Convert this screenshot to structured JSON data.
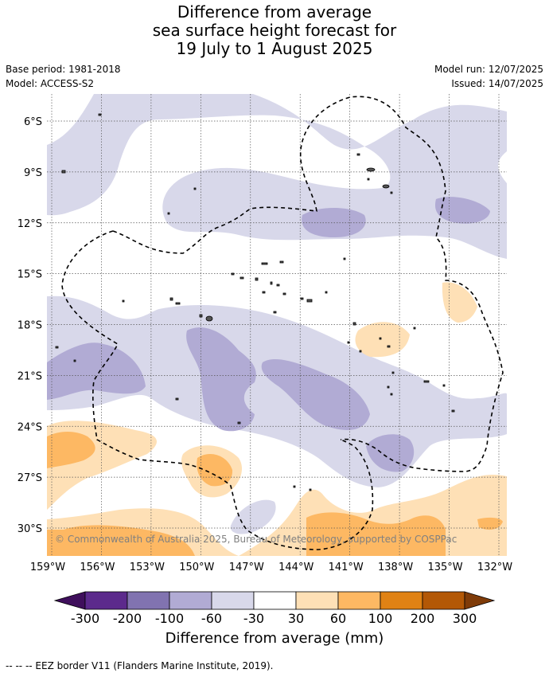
{
  "title_lines": [
    "Difference from average",
    "sea surface height forecast for",
    "19 July to 1 August 2025"
  ],
  "meta": {
    "base_period": "Base period: 1981-2018",
    "model": "Model: ACCESS-S2",
    "model_run": "Model run: 12/07/2025",
    "issued": "Issued: 14/07/2025"
  },
  "lat_labels": [
    "6°S",
    "9°S",
    "12°S",
    "15°S",
    "18°S",
    "21°S",
    "24°S",
    "27°S",
    "30°S"
  ],
  "lat_values": [
    -6,
    -9,
    -12,
    -15,
    -18,
    -21,
    -24,
    -27,
    -30
  ],
  "lon_labels": [
    "159°W",
    "156°W",
    "153°W",
    "150°W",
    "147°W",
    "144°W",
    "141°W",
    "138°W",
    "135°W",
    "132°W"
  ],
  "lon_values": [
    -159,
    -156,
    -153,
    -150,
    -147,
    -144,
    -141,
    -138,
    -135,
    -132
  ],
  "copyright": "© Commonwealth of Australia 2025, Bureau of Meteorology, supported by COSPPac",
  "colorbar": {
    "title": "Difference from average (mm)",
    "ticks": [
      "-300",
      "-200",
      "-100",
      "-60",
      "-30",
      "30",
      "60",
      "100",
      "200",
      "300"
    ],
    "colors": [
      "#3f0f5c",
      "#5c2a8c",
      "#8173b0",
      "#b1abd4",
      "#d8d8ea",
      "#ffffff",
      "#fee0b6",
      "#fdb863",
      "#e08214",
      "#b35806",
      "#7f3b08"
    ]
  },
  "footer": "--  --  -- EEZ border V11 (Flanders Marine Institute, 2019)."
}
